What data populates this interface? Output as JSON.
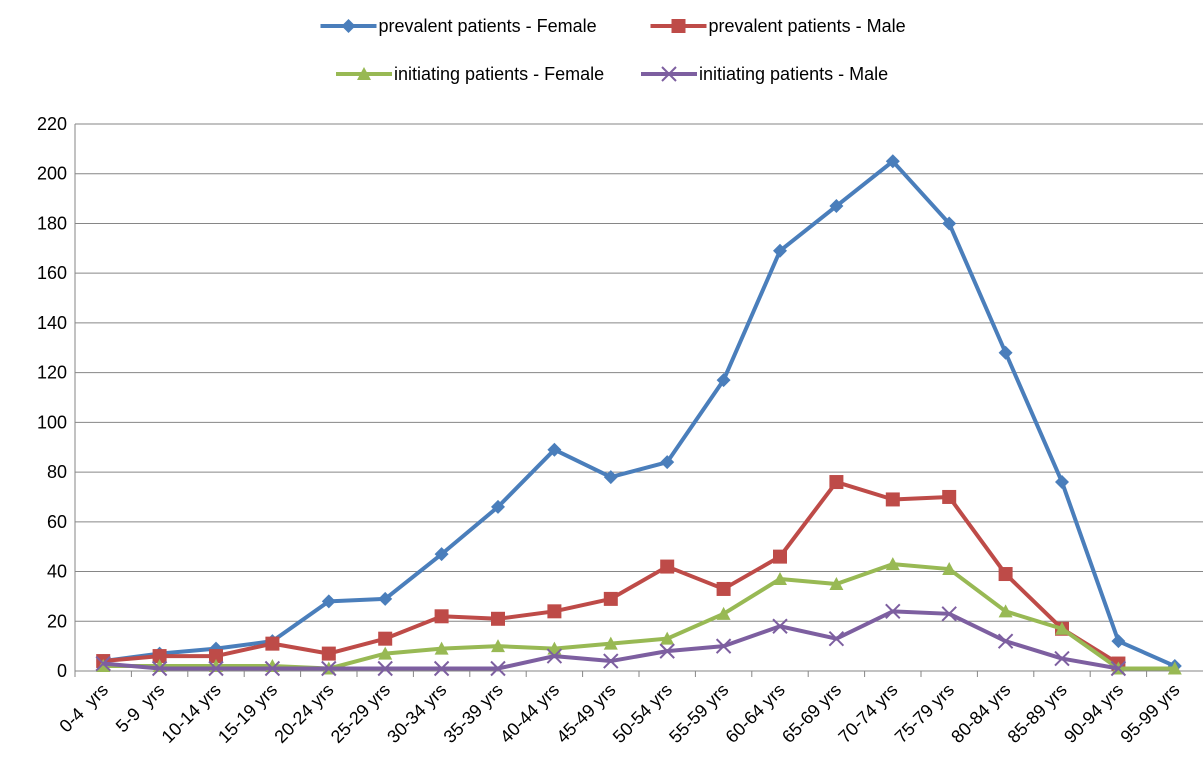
{
  "chart_data": {
    "type": "line",
    "categories": [
      "0-4  yrs",
      "5-9  yrs",
      "10-14 yrs",
      "15-19 yrs",
      "20-24 yrs",
      "25-29 yrs",
      "30-34 yrs",
      "35-39 yrs",
      "40-44 yrs",
      "45-49 yrs",
      "50-54 yrs",
      "55-59 yrs",
      "60-64 yrs",
      "65-69 yrs",
      "70-74 yrs",
      "75-79 yrs",
      "80-84 yrs",
      "85-89 yrs",
      "90-94 yrs",
      "95-99 yrs"
    ],
    "series": [
      {
        "name": "prevalent patients - Female",
        "color": "#4a7ebb",
        "marker": "diamond",
        "values": [
          4,
          7,
          9,
          12,
          28,
          29,
          47,
          66,
          89,
          78,
          84,
          117,
          169,
          187,
          205,
          180,
          128,
          76,
          12,
          2
        ]
      },
      {
        "name": "prevalent patients - Male",
        "color": "#be4b48",
        "marker": "square",
        "values": [
          4,
          6,
          6,
          11,
          7,
          13,
          22,
          21,
          24,
          29,
          42,
          33,
          46,
          76,
          69,
          70,
          39,
          17,
          3,
          null
        ]
      },
      {
        "name": "initiating patients - Female",
        "color": "#98b954",
        "marker": "triangle",
        "values": [
          2,
          2,
          2,
          2,
          1,
          7,
          9,
          10,
          9,
          11,
          13,
          23,
          37,
          35,
          43,
          41,
          24,
          17,
          1,
          1
        ]
      },
      {
        "name": "initiating patients - Male",
        "color": "#7d5fa0",
        "marker": "x",
        "values": [
          3,
          1,
          1,
          1,
          1,
          1,
          1,
          1,
          6,
          4,
          8,
          10,
          18,
          13,
          24,
          23,
          12,
          5,
          1,
          null
        ]
      }
    ],
    "ylim": [
      0,
      220
    ],
    "yticks": [
      0,
      20,
      40,
      60,
      80,
      100,
      120,
      140,
      160,
      180,
      200,
      220
    ],
    "grid": true
  }
}
